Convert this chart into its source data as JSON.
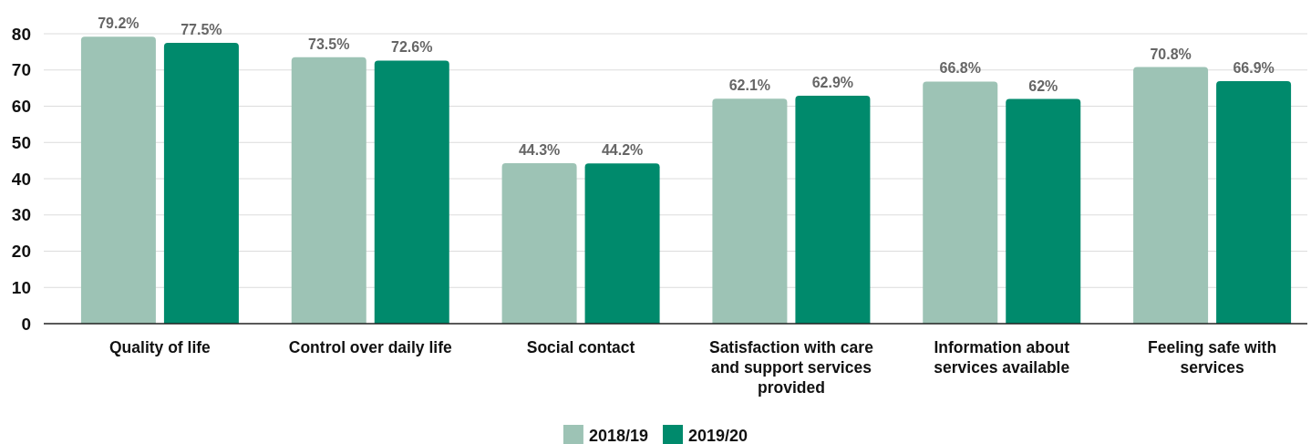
{
  "chart_data": {
    "type": "bar",
    "categories": [
      "Quality of life",
      "Control over daily life",
      "Social contact",
      "Satisfaction with care and support services provided",
      "Information about services available",
      "Feeling safe with services"
    ],
    "series": [
      {
        "name": "2018/19",
        "color": "#9dc3b5",
        "values": [
          79.2,
          73.5,
          44.3,
          62.1,
          66.8,
          70.8
        ],
        "value_labels": [
          "79.2%",
          "73.5%",
          "44.3%",
          "62.1%",
          "66.8%",
          "70.8%"
        ]
      },
      {
        "name": "2019/20",
        "color": "#008a6c",
        "values": [
          77.5,
          72.6,
          44.2,
          62.9,
          62,
          66.9
        ],
        "value_labels": [
          "77.5%",
          "72.6%",
          "44.2%",
          "62.9%",
          "62%",
          "66.9%"
        ]
      }
    ],
    "ylim": [
      0,
      80
    ],
    "yticks": [
      0,
      10,
      20,
      30,
      40,
      50,
      60,
      70,
      80
    ],
    "grid": "y",
    "legend": "bottom"
  }
}
